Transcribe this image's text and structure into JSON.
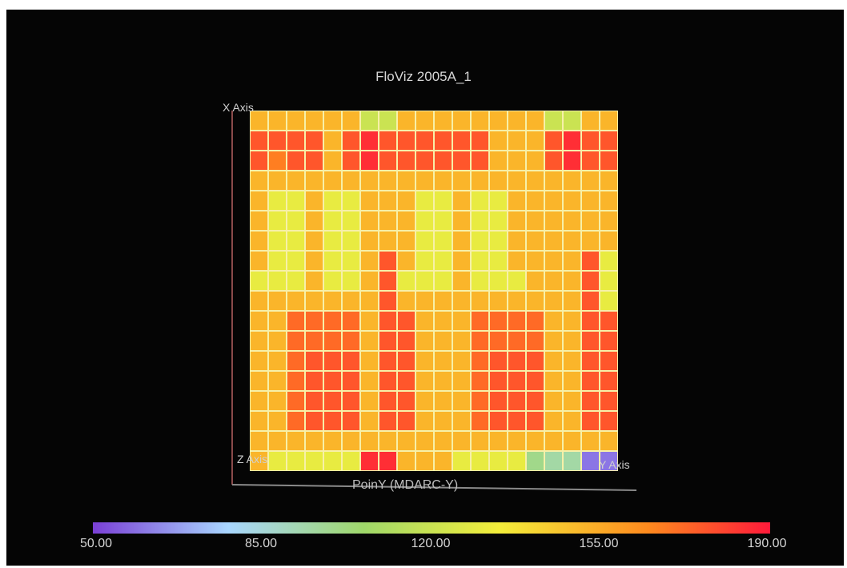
{
  "chart_data": {
    "type": "heatmap",
    "title": "FloViz 2005A_1",
    "xlabel": "PoinY (MDARC-Y)",
    "axis_labels": {
      "x": "X Axis",
      "y": "Y Axis",
      "z": "Z Axis"
    },
    "colorbar": {
      "min": 50,
      "max": 190,
      "ticks": [
        "50.00",
        "85.00",
        "120.00",
        "155.00",
        "190.00"
      ],
      "colors": [
        "#7a3fd6",
        "#a9d7ff",
        "#9fd86a",
        "#f4ee3a",
        "#ff8a1e",
        "#ff1a3a"
      ]
    },
    "grid": {
      "columns": 20,
      "rows": 18
    },
    "values": [
      [
        150,
        150,
        150,
        150,
        150,
        150,
        120,
        120,
        150,
        150,
        150,
        150,
        150,
        150,
        150,
        150,
        120,
        120,
        150,
        150
      ],
      [
        175,
        175,
        175,
        175,
        150,
        175,
        185,
        175,
        175,
        175,
        175,
        175,
        175,
        150,
        150,
        150,
        175,
        185,
        175,
        175
      ],
      [
        175,
        165,
        175,
        175,
        150,
        175,
        185,
        175,
        175,
        175,
        175,
        175,
        175,
        150,
        150,
        150,
        175,
        185,
        175,
        175
      ],
      [
        150,
        150,
        150,
        150,
        150,
        150,
        150,
        150,
        150,
        150,
        150,
        150,
        150,
        150,
        150,
        150,
        150,
        150,
        150,
        150
      ],
      [
        150,
        130,
        130,
        150,
        130,
        130,
        150,
        150,
        150,
        130,
        130,
        150,
        130,
        130,
        150,
        150,
        150,
        150,
        150,
        150
      ],
      [
        150,
        130,
        130,
        150,
        130,
        130,
        150,
        150,
        150,
        130,
        130,
        150,
        130,
        130,
        150,
        150,
        150,
        150,
        150,
        150
      ],
      [
        150,
        130,
        130,
        150,
        130,
        130,
        150,
        150,
        150,
        130,
        130,
        150,
        130,
        130,
        150,
        150,
        150,
        150,
        150,
        150
      ],
      [
        150,
        130,
        130,
        150,
        130,
        130,
        150,
        175,
        150,
        130,
        130,
        150,
        130,
        130,
        150,
        150,
        150,
        150,
        175,
        130
      ],
      [
        130,
        130,
        130,
        150,
        130,
        130,
        150,
        175,
        130,
        130,
        130,
        150,
        130,
        130,
        130,
        150,
        150,
        150,
        175,
        130
      ],
      [
        150,
        150,
        150,
        150,
        150,
        150,
        150,
        175,
        150,
        150,
        150,
        150,
        150,
        150,
        150,
        150,
        150,
        150,
        175,
        130
      ],
      [
        150,
        150,
        170,
        170,
        170,
        170,
        150,
        175,
        175,
        150,
        150,
        150,
        170,
        170,
        170,
        170,
        150,
        150,
        175,
        175
      ],
      [
        150,
        150,
        170,
        170,
        170,
        170,
        150,
        175,
        175,
        150,
        150,
        150,
        170,
        170,
        170,
        170,
        150,
        150,
        175,
        175
      ],
      [
        150,
        150,
        170,
        175,
        175,
        175,
        150,
        175,
        175,
        150,
        150,
        150,
        170,
        175,
        175,
        175,
        150,
        150,
        175,
        175
      ],
      [
        150,
        150,
        170,
        175,
        175,
        175,
        150,
        175,
        175,
        150,
        150,
        150,
        170,
        175,
        175,
        175,
        150,
        150,
        175,
        175
      ],
      [
        150,
        150,
        170,
        175,
        175,
        175,
        150,
        175,
        175,
        150,
        150,
        150,
        170,
        175,
        175,
        175,
        150,
        150,
        175,
        175
      ],
      [
        150,
        150,
        170,
        175,
        175,
        175,
        150,
        175,
        175,
        150,
        150,
        150,
        170,
        175,
        175,
        175,
        150,
        150,
        175,
        175
      ],
      [
        150,
        150,
        150,
        150,
        150,
        150,
        150,
        150,
        150,
        150,
        150,
        150,
        150,
        150,
        150,
        150,
        150,
        150,
        150,
        150
      ],
      [
        150,
        130,
        130,
        130,
        130,
        130,
        185,
        185,
        150,
        150,
        150,
        130,
        130,
        130,
        130,
        100,
        95,
        95,
        60,
        60
      ]
    ]
  }
}
